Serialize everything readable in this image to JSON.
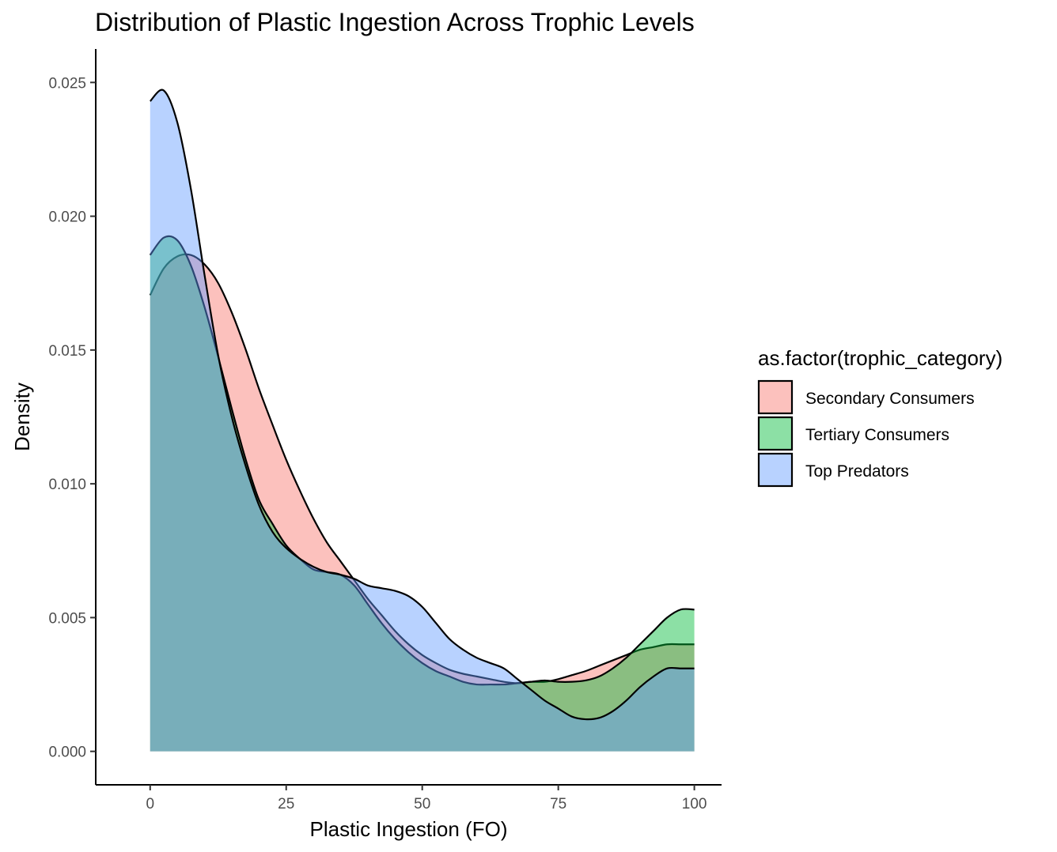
{
  "chart_data": {
    "type": "area",
    "title": "Distribution of Plastic Ingestion Across Trophic Levels",
    "xlabel": "Plastic Ingestion (FO)",
    "ylabel": "Density",
    "xlim": [
      -10,
      105
    ],
    "ylim": [
      -0.00125,
      0.02625
    ],
    "x_ticks": [
      0,
      25,
      50,
      75,
      100
    ],
    "x_tick_labels": [
      "0",
      "25",
      "50",
      "75",
      "100"
    ],
    "y_ticks": [
      0.0,
      0.005,
      0.01,
      0.015,
      0.02,
      0.025
    ],
    "y_tick_labels": [
      "0.000",
      "0.005",
      "0.010",
      "0.015",
      "0.020",
      "0.025"
    ],
    "grid": false,
    "legend": {
      "title": "as.factor(trophic_category)",
      "position": "right"
    },
    "series": [
      {
        "name": "Secondary Consumers",
        "color": "#F8766D",
        "x": [
          0,
          2.5,
          5,
          7.5,
          10,
          12.5,
          15,
          17.5,
          20,
          22.5,
          25,
          27.5,
          30,
          32.5,
          35,
          37.5,
          40,
          42.5,
          45,
          47.5,
          50,
          52.5,
          55,
          57.5,
          60,
          62.5,
          65,
          67.5,
          70,
          72.5,
          75,
          77.5,
          80,
          82.5,
          85,
          87.5,
          90,
          92.5,
          95,
          97.5,
          100
        ],
        "values": [
          0.01705,
          0.01805,
          0.0185,
          0.01855,
          0.0182,
          0.0175,
          0.0164,
          0.01505,
          0.01355,
          0.0122,
          0.0109,
          0.00975,
          0.0087,
          0.0078,
          0.0071,
          0.0064,
          0.0057,
          0.0051,
          0.0045,
          0.004,
          0.0036,
          0.0033,
          0.00305,
          0.0029,
          0.0028,
          0.0027,
          0.0026,
          0.00255,
          0.0026,
          0.0026,
          0.0027,
          0.00285,
          0.003,
          0.0032,
          0.0034,
          0.0036,
          0.0038,
          0.0039,
          0.004,
          0.004,
          0.004
        ]
      },
      {
        "name": "Tertiary Consumers",
        "color": "#00BA38",
        "x": [
          0,
          2.5,
          5,
          7.5,
          10,
          12.5,
          15,
          17.5,
          20,
          22.5,
          25,
          27.5,
          30,
          32.5,
          35,
          37.5,
          40,
          42.5,
          45,
          47.5,
          50,
          52.5,
          55,
          57.5,
          60,
          62.5,
          65,
          67.5,
          70,
          72.5,
          75,
          77.5,
          80,
          82.5,
          85,
          87.5,
          90,
          92.5,
          95,
          97.5,
          100
        ],
        "values": [
          0.01855,
          0.0192,
          0.0191,
          0.01815,
          0.0166,
          0.01475,
          0.0128,
          0.01095,
          0.0094,
          0.0085,
          0.0077,
          0.0072,
          0.0068,
          0.0067,
          0.0066,
          0.0062,
          0.0055,
          0.0048,
          0.0042,
          0.0037,
          0.0033,
          0.003,
          0.0028,
          0.0026,
          0.0025,
          0.0025,
          0.0025,
          0.00255,
          0.0026,
          0.00265,
          0.0026,
          0.0026,
          0.00265,
          0.0028,
          0.0031,
          0.0035,
          0.004,
          0.0045,
          0.005,
          0.0053,
          0.0053
        ]
      },
      {
        "name": "Top Predators",
        "color": "#619CFF",
        "x": [
          0,
          2.5,
          5,
          7.5,
          10,
          12.5,
          15,
          17.5,
          20,
          22.5,
          25,
          27.5,
          30,
          32.5,
          35,
          37.5,
          40,
          42.5,
          45,
          47.5,
          50,
          52.5,
          55,
          57.5,
          60,
          62.5,
          65,
          67.5,
          70,
          72.5,
          75,
          77.5,
          80,
          82.5,
          85,
          87.5,
          90,
          92.5,
          95,
          97.5,
          100
        ],
        "values": [
          0.0243,
          0.0247,
          0.0235,
          0.021,
          0.0178,
          0.0148,
          0.0125,
          0.0107,
          0.0092,
          0.0082,
          0.0076,
          0.0072,
          0.0069,
          0.0067,
          0.0066,
          0.00645,
          0.0062,
          0.0061,
          0.006,
          0.0058,
          0.0054,
          0.0048,
          0.0042,
          0.0038,
          0.0035,
          0.0033,
          0.0031,
          0.0027,
          0.0023,
          0.0019,
          0.0016,
          0.0013,
          0.0012,
          0.00125,
          0.0015,
          0.0019,
          0.0024,
          0.0028,
          0.0031,
          0.0031,
          0.0031
        ]
      }
    ]
  }
}
